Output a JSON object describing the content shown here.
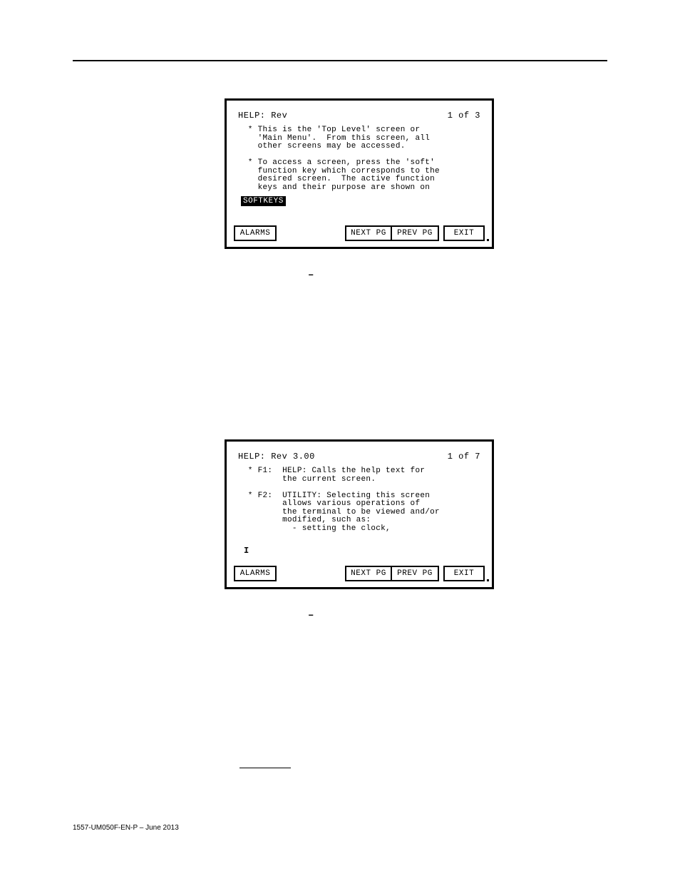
{
  "terminal1": {
    "title_left": "HELP: Rev",
    "title_right": "1 of  3",
    "body": "  * This is the 'Top Level' screen or\n    'Main Menu'.  From this screen, all\n    other screens may be accessed.\n\n  * To access a screen, press the 'soft'\n    function key which corresponds to the\n    desired screen.  The active function\n    keys and their purpose are shown on",
    "softkeys_label": "SOFTKEYS",
    "keys": {
      "alarms": "ALARMS",
      "nextpg": "NEXT PG",
      "prevpg": "PREV PG",
      "exit": "EXIT"
    }
  },
  "terminal2": {
    "title_left": "HELP: Rev 3.00",
    "title_right": "1 of  7",
    "body": "  * F1:  HELP: Calls the help text for\n         the current screen.\n\n  * F2:  UTILITY: Selecting this screen\n         allows various operations of\n         the terminal to be viewed and/or\n         modified, such as:\n           - setting the clock,",
    "cursor": "I",
    "keys": {
      "alarms": "ALARMS",
      "nextpg": "NEXT PG",
      "prevpg": "PREV PG",
      "exit": "EXIT"
    }
  },
  "footer": "1557-UM050F-EN-P – June 2013",
  "colors": {
    "bg": "#ffffff",
    "fg": "#000000"
  }
}
